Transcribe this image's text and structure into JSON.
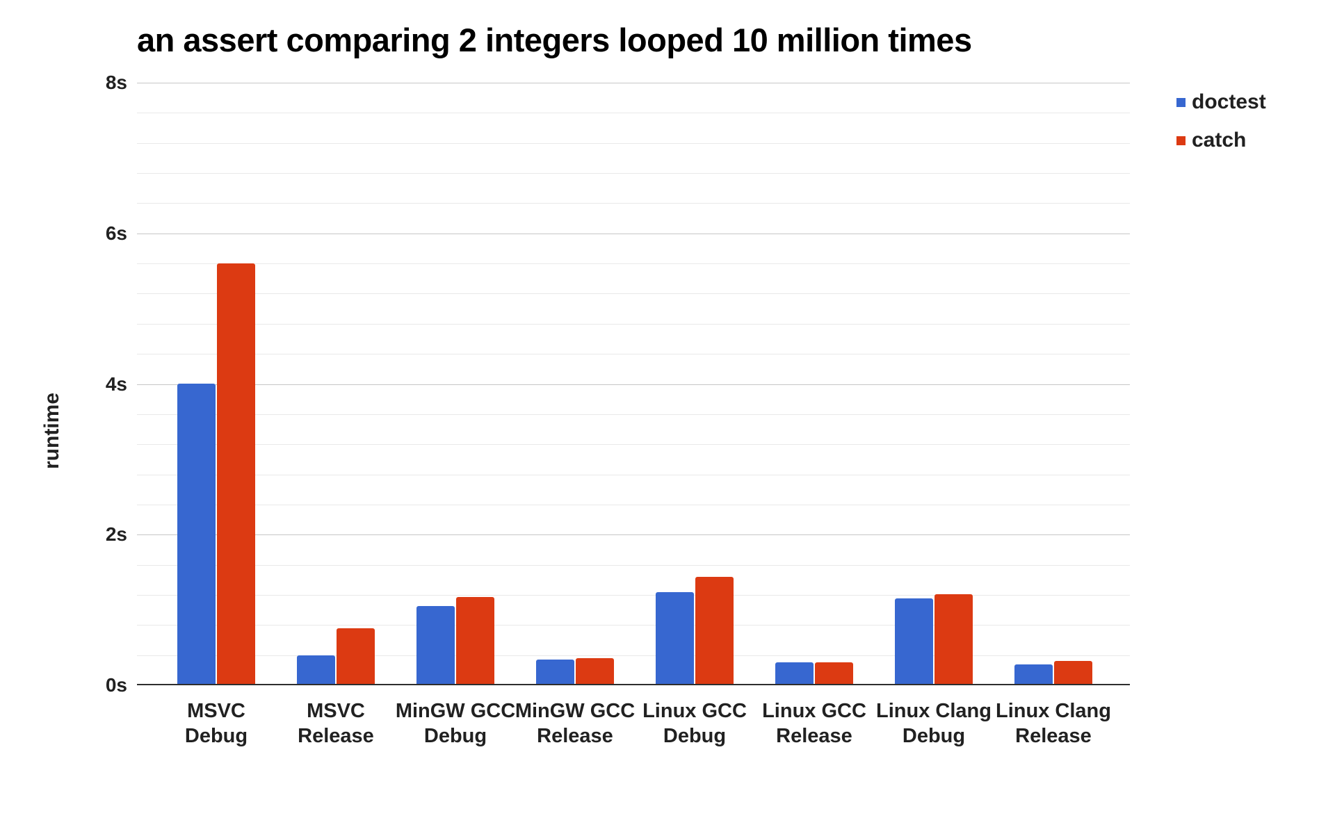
{
  "chart_data": {
    "type": "bar",
    "title": "an assert comparing 2 integers looped 10 million times",
    "xlabel": "",
    "ylabel": "runtime",
    "categories": [
      [
        "MSVC",
        "Debug"
      ],
      [
        "MSVC",
        "Release"
      ],
      [
        "MinGW GCC",
        "Debug"
      ],
      [
        "MinGW GCC",
        "Release"
      ],
      [
        "Linux GCC",
        "Debug"
      ],
      [
        "Linux GCC",
        "Release"
      ],
      [
        "Linux Clang",
        "Debug"
      ],
      [
        "Linux Clang",
        "Release"
      ]
    ],
    "series": [
      {
        "name": "doctest",
        "color": "#3767d0",
        "values": [
          4.0,
          0.4,
          1.05,
          0.34,
          1.24,
          0.3,
          1.15,
          0.28
        ]
      },
      {
        "name": "catch",
        "color": "#dc3a12",
        "values": [
          5.6,
          0.76,
          1.17,
          0.36,
          1.44,
          0.3,
          1.21,
          0.32
        ]
      }
    ],
    "unit": "s",
    "ylim": [
      0,
      8
    ],
    "y_ticks": [
      {
        "value": 0,
        "label": "0s"
      },
      {
        "value": 2,
        "label": "2s"
      },
      {
        "value": 4,
        "label": "4s"
      },
      {
        "value": 6,
        "label": "6s"
      },
      {
        "value": 8,
        "label": "8s"
      }
    ],
    "minor_grid_step": 0.4,
    "grid": true,
    "legend_position": "top-right"
  }
}
